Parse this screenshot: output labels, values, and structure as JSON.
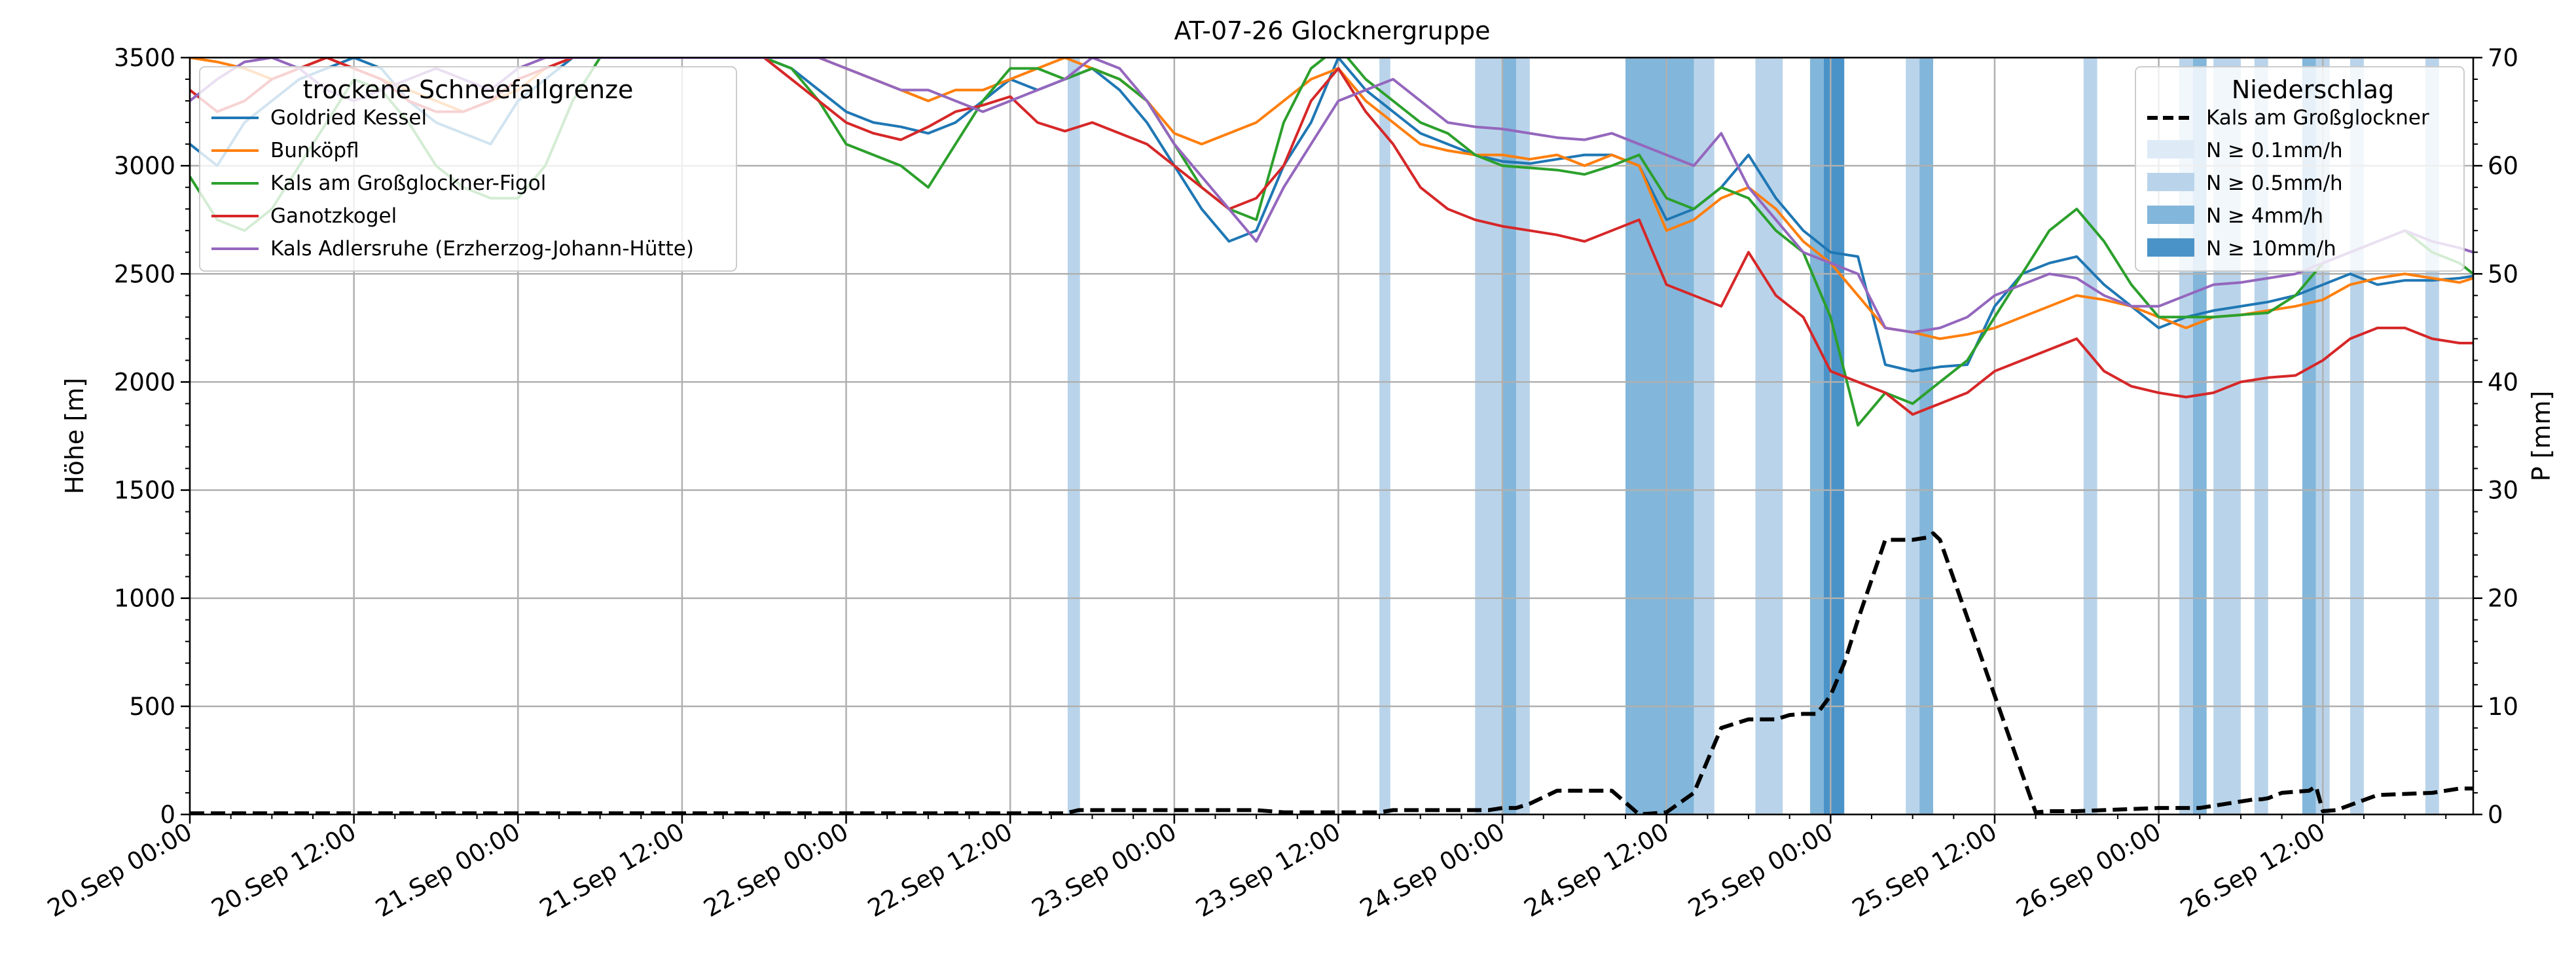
{
  "chart_data": {
    "type": "line",
    "title": "AT-07-26 Glocknergruppe",
    "ylabel_left": "Höhe [m]",
    "ylabel_right": "P [mm]",
    "ylim_left": [
      0,
      3500
    ],
    "ylim_right": [
      0,
      70
    ],
    "yticks_left": [
      0,
      500,
      1000,
      1500,
      2000,
      2500,
      3000,
      3500
    ],
    "yticks_right": [
      0,
      10,
      20,
      30,
      40,
      50,
      60,
      70
    ],
    "x_start": "20.Sep 00:00",
    "x_end_hours": 167,
    "xticks": [
      {
        "h": 0,
        "label": "20.Sep 00:00"
      },
      {
        "h": 12,
        "label": "20.Sep 12:00"
      },
      {
        "h": 24,
        "label": "21.Sep 00:00"
      },
      {
        "h": 36,
        "label": "21.Sep 12:00"
      },
      {
        "h": 48,
        "label": "22.Sep 00:00"
      },
      {
        "h": 60,
        "label": "22.Sep 12:00"
      },
      {
        "h": 72,
        "label": "23.Sep 00:00"
      },
      {
        "h": 84,
        "label": "23.Sep 12:00"
      },
      {
        "h": 96,
        "label": "24.Sep 00:00"
      },
      {
        "h": 108,
        "label": "24.Sep 12:00"
      },
      {
        "h": 120,
        "label": "25.Sep 00:00"
      },
      {
        "h": 132,
        "label": "25.Sep 12:00"
      },
      {
        "h": 144,
        "label": "26.Sep 00:00"
      },
      {
        "h": 156,
        "label": "26.Sep 12:00"
      }
    ],
    "grid": true,
    "legend_left": {
      "title": "trockene Schneefallgrenze",
      "placement": "top-left"
    },
    "legend_right": {
      "title": "Niederschlag",
      "placement": "top-right",
      "precip_line_label": "Kals am Großglockner",
      "bands": [
        {
          "label": "N ≥ 0.1mm/h",
          "color": "#deebf7"
        },
        {
          "label": "N ≥ 0.5mm/h",
          "color": "#b9d4ea"
        },
        {
          "label": "N ≥ 4mm/h",
          "color": "#82b6da"
        },
        {
          "label": "N ≥ 10mm/h",
          "color": "#4a93c8"
        }
      ]
    },
    "series": [
      {
        "name": "Goldried Kessel",
        "color": "#1f77b4",
        "x": [
          0,
          2,
          4,
          6,
          8,
          10,
          12,
          14,
          16,
          18,
          20,
          22,
          24,
          26,
          28,
          30,
          32,
          34,
          36,
          38,
          40,
          42,
          44,
          46,
          48,
          50,
          52,
          54,
          56,
          58,
          60,
          62,
          64,
          66,
          68,
          70,
          72,
          74,
          76,
          78,
          80,
          82,
          84,
          86,
          88,
          90,
          92,
          94,
          96,
          98,
          100,
          102,
          104,
          106,
          108,
          110,
          112,
          114,
          116,
          118,
          120,
          122,
          124,
          126,
          128,
          130,
          132,
          134,
          136,
          138,
          140,
          142,
          144,
          146,
          148,
          150,
          152,
          154,
          156,
          158,
          160,
          162,
          164,
          166,
          167
        ],
        "y": [
          3100,
          3000,
          3200,
          3300,
          3400,
          3450,
          3500,
          3450,
          3300,
          3200,
          3150,
          3100,
          3300,
          3400,
          3500,
          3500,
          3500,
          3500,
          3500,
          3500,
          3500,
          3500,
          3450,
          3350,
          3250,
          3200,
          3180,
          3150,
          3200,
          3300,
          3400,
          3350,
          3400,
          3450,
          3350,
          3200,
          3000,
          2800,
          2650,
          2700,
          3000,
          3200,
          3500,
          3350,
          3250,
          3150,
          3100,
          3050,
          3020,
          3010,
          3030,
          3050,
          3050,
          3000,
          2750,
          2800,
          2900,
          3050,
          2850,
          2700,
          2600,
          2580,
          2080,
          2050,
          2070,
          2080,
          2350,
          2500,
          2550,
          2580,
          2450,
          2350,
          2250,
          2300,
          2330,
          2350,
          2370,
          2400,
          2450,
          2500,
          2450,
          2470,
          2470,
          2480,
          2490
        ]
      },
      {
        "name": "Bunköpfl",
        "color": "#ff7f0e",
        "x": [
          0,
          2,
          4,
          6,
          8,
          10,
          12,
          14,
          16,
          18,
          20,
          22,
          24,
          26,
          28,
          30,
          32,
          34,
          36,
          38,
          40,
          42,
          44,
          46,
          48,
          50,
          52,
          54,
          56,
          58,
          60,
          62,
          64,
          66,
          68,
          70,
          72,
          74,
          76,
          78,
          80,
          82,
          84,
          86,
          88,
          90,
          92,
          94,
          96,
          98,
          100,
          102,
          104,
          106,
          108,
          110,
          112,
          114,
          116,
          118,
          120,
          122,
          124,
          126,
          128,
          130,
          132,
          134,
          136,
          138,
          140,
          142,
          144,
          146,
          148,
          150,
          152,
          154,
          156,
          158,
          160,
          162,
          164,
          166,
          167
        ],
        "y": [
          3500,
          3480,
          3450,
          3400,
          3450,
          3500,
          3450,
          3400,
          3350,
          3300,
          3250,
          3300,
          3350,
          3450,
          3500,
          3500,
          3500,
          3500,
          3500,
          3500,
          3500,
          3500,
          3500,
          3500,
          3450,
          3400,
          3350,
          3300,
          3350,
          3350,
          3400,
          3450,
          3500,
          3450,
          3400,
          3300,
          3150,
          3100,
          3150,
          3200,
          3300,
          3400,
          3450,
          3300,
          3200,
          3100,
          3070,
          3050,
          3050,
          3030,
          3050,
          3000,
          3050,
          3000,
          2700,
          2750,
          2850,
          2900,
          2800,
          2650,
          2550,
          2400,
          2250,
          2230,
          2200,
          2220,
          2250,
          2300,
          2350,
          2400,
          2380,
          2350,
          2300,
          2250,
          2300,
          2310,
          2330,
          2350,
          2380,
          2450,
          2480,
          2500,
          2480,
          2460,
          2480
        ]
      },
      {
        "name": "Kals am Großglockner-Figol",
        "color": "#2ca02c",
        "x": [
          0,
          2,
          4,
          6,
          8,
          10,
          12,
          14,
          16,
          18,
          20,
          22,
          24,
          26,
          28,
          30,
          32,
          34,
          36,
          38,
          40,
          42,
          44,
          46,
          48,
          50,
          52,
          54,
          56,
          58,
          60,
          62,
          64,
          66,
          68,
          70,
          72,
          74,
          76,
          78,
          80,
          82,
          84,
          86,
          88,
          90,
          92,
          94,
          96,
          98,
          100,
          102,
          104,
          106,
          108,
          110,
          112,
          114,
          116,
          118,
          120,
          122,
          124,
          126,
          128,
          130,
          132,
          134,
          136,
          138,
          140,
          142,
          144,
          146,
          148,
          150,
          152,
          154,
          156,
          158,
          160,
          162,
          164,
          166,
          167
        ],
        "y": [
          2950,
          2750,
          2700,
          2800,
          3000,
          3200,
          3400,
          3350,
          3200,
          3000,
          2900,
          2850,
          2850,
          3000,
          3300,
          3500,
          3500,
          3500,
          3500,
          3500,
          3500,
          3500,
          3450,
          3300,
          3100,
          3050,
          3000,
          2900,
          3100,
          3300,
          3450,
          3450,
          3400,
          3450,
          3400,
          3300,
          3100,
          2900,
          2800,
          2750,
          3200,
          3450,
          3550,
          3400,
          3300,
          3200,
          3150,
          3050,
          3000,
          2990,
          2980,
          2960,
          3000,
          3050,
          2850,
          2800,
          2900,
          2850,
          2700,
          2600,
          2300,
          1800,
          1950,
          1900,
          2000,
          2100,
          2300,
          2500,
          2700,
          2800,
          2650,
          2450,
          2300,
          2300,
          2300,
          2310,
          2320,
          2400,
          2550,
          2600,
          2650,
          2700,
          2600,
          2550,
          2500
        ]
      },
      {
        "name": "Ganotzkogel",
        "color": "#d62728",
        "x": [
          0,
          2,
          4,
          6,
          8,
          10,
          12,
          14,
          16,
          18,
          20,
          22,
          24,
          26,
          28,
          30,
          32,
          34,
          36,
          38,
          40,
          42,
          44,
          46,
          48,
          50,
          52,
          54,
          56,
          58,
          60,
          62,
          64,
          66,
          68,
          70,
          72,
          74,
          76,
          78,
          80,
          82,
          84,
          86,
          88,
          90,
          92,
          94,
          96,
          98,
          100,
          102,
          104,
          106,
          108,
          110,
          112,
          114,
          116,
          118,
          120,
          122,
          124,
          126,
          128,
          130,
          132,
          134,
          136,
          138,
          140,
          142,
          144,
          146,
          148,
          150,
          152,
          154,
          156,
          158,
          160,
          162,
          164,
          166,
          167
        ],
        "y": [
          3350,
          3250,
          3300,
          3400,
          3450,
          3500,
          3450,
          3400,
          3300,
          3250,
          3250,
          3300,
          3400,
          3450,
          3500,
          3500,
          3500,
          3500,
          3500,
          3500,
          3500,
          3500,
          3400,
          3300,
          3200,
          3150,
          3120,
          3180,
          3250,
          3280,
          3320,
          3200,
          3160,
          3200,
          3150,
          3100,
          3000,
          2900,
          2800,
          2850,
          3000,
          3300,
          3450,
          3250,
          3100,
          2900,
          2800,
          2750,
          2720,
          2700,
          2680,
          2650,
          2700,
          2750,
          2450,
          2400,
          2350,
          2600,
          2400,
          2300,
          2050,
          2000,
          1950,
          1850,
          1900,
          1950,
          2050,
          2100,
          2150,
          2200,
          2050,
          1980,
          1950,
          1930,
          1950,
          2000,
          2020,
          2030,
          2100,
          2200,
          2250,
          2250,
          2200,
          2180,
          2180
        ]
      },
      {
        "name": "Kals Adlersruhe (Erzherzog-Johann-Hütte)",
        "color": "#9467bd",
        "x": [
          0,
          2,
          4,
          6,
          8,
          10,
          12,
          14,
          16,
          18,
          20,
          22,
          24,
          26,
          28,
          30,
          32,
          34,
          36,
          38,
          40,
          42,
          44,
          46,
          48,
          50,
          52,
          54,
          56,
          58,
          60,
          62,
          64,
          66,
          68,
          70,
          72,
          74,
          76,
          78,
          80,
          82,
          84,
          86,
          88,
          90,
          92,
          94,
          96,
          98,
          100,
          102,
          104,
          106,
          108,
          110,
          112,
          114,
          116,
          118,
          120,
          122,
          124,
          126,
          128,
          130,
          132,
          134,
          136,
          138,
          140,
          142,
          144,
          146,
          148,
          150,
          152,
          154,
          156,
          158,
          160,
          162,
          164,
          166,
          167
        ],
        "y": [
          3300,
          3400,
          3480,
          3500,
          3450,
          3350,
          3300,
          3350,
          3400,
          3450,
          3400,
          3350,
          3450,
          3500,
          3500,
          3500,
          3500,
          3500,
          3500,
          3500,
          3500,
          3500,
          3500,
          3500,
          3450,
          3400,
          3350,
          3350,
          3300,
          3250,
          3300,
          3350,
          3400,
          3500,
          3450,
          3300,
          3100,
          2950,
          2800,
          2650,
          2900,
          3100,
          3300,
          3350,
          3400,
          3300,
          3200,
          3180,
          3170,
          3150,
          3130,
          3120,
          3150,
          3100,
          3050,
          3000,
          3150,
          2900,
          2750,
          2600,
          2550,
          2500,
          2250,
          2230,
          2250,
          2300,
          2400,
          2450,
          2500,
          2480,
          2400,
          2350,
          2350,
          2400,
          2450,
          2460,
          2480,
          2500,
          2550,
          2600,
          2650,
          2700,
          2650,
          2620,
          2600
        ]
      },
      {
        "name": "Kals am Großglockner",
        "axis": "right",
        "color": "#000000",
        "dashed": true,
        "x": [
          0,
          64,
          65,
          78,
          80,
          87,
          88,
          95,
          96,
          97,
          98,
          100,
          104,
          106,
          108,
          110,
          112,
          114,
          116,
          117,
          118,
          119,
          120,
          121,
          122,
          124,
          126,
          127,
          127.5,
          128,
          135,
          136,
          138,
          140,
          144,
          147,
          150,
          151,
          151.5,
          152,
          153,
          155,
          155.5,
          156,
          157,
          160,
          164,
          166,
          167
        ],
        "y": [
          0.1,
          0.1,
          0.4,
          0.4,
          0.2,
          0.2,
          0.4,
          0.4,
          0.6,
          0.6,
          1.0,
          2.2,
          2.2,
          0.0,
          0.2,
          2.0,
          8.0,
          8.8,
          8.8,
          9.2,
          9.3,
          9.3,
          11.0,
          14.0,
          18.0,
          25.4,
          25.4,
          25.6,
          26.0,
          25.4,
          0.2,
          0.3,
          0.3,
          0.4,
          0.6,
          0.6,
          1.2,
          1.4,
          1.4,
          1.5,
          2.0,
          2.2,
          2.6,
          0.3,
          0.4,
          1.8,
          2.0,
          2.4,
          2.4
        ]
      }
    ],
    "precip_bands": [
      {
        "x0": 64.2,
        "x1": 65.1,
        "level": 1
      },
      {
        "x0": 87.0,
        "x1": 87.8,
        "level": 1
      },
      {
        "x0": 94.0,
        "x1": 96.0,
        "level": 1
      },
      {
        "x0": 96.0,
        "x1": 97.0,
        "level": 2
      },
      {
        "x0": 97.0,
        "x1": 98.0,
        "level": 1
      },
      {
        "x0": 105.0,
        "x1": 110.0,
        "level": 2
      },
      {
        "x0": 110.0,
        "x1": 111.5,
        "level": 1
      },
      {
        "x0": 114.5,
        "x1": 116.5,
        "level": 1
      },
      {
        "x0": 118.5,
        "x1": 119.5,
        "level": 2
      },
      {
        "x0": 119.5,
        "x1": 121.0,
        "level": 3
      },
      {
        "x0": 125.5,
        "x1": 126.5,
        "level": 1
      },
      {
        "x0": 126.5,
        "x1": 127.5,
        "level": 2
      },
      {
        "x0": 138.5,
        "x1": 139.5,
        "level": 1
      },
      {
        "x0": 145.5,
        "x1": 146.5,
        "level": 1
      },
      {
        "x0": 146.5,
        "x1": 147.5,
        "level": 2
      },
      {
        "x0": 148.0,
        "x1": 150.0,
        "level": 1
      },
      {
        "x0": 151.0,
        "x1": 152.0,
        "level": 1
      },
      {
        "x0": 154.5,
        "x1": 155.5,
        "level": 2
      },
      {
        "x0": 155.5,
        "x1": 156.5,
        "level": 1
      },
      {
        "x0": 158.0,
        "x1": 159.0,
        "level": 1
      },
      {
        "x0": 163.5,
        "x1": 164.5,
        "level": 1
      }
    ]
  }
}
